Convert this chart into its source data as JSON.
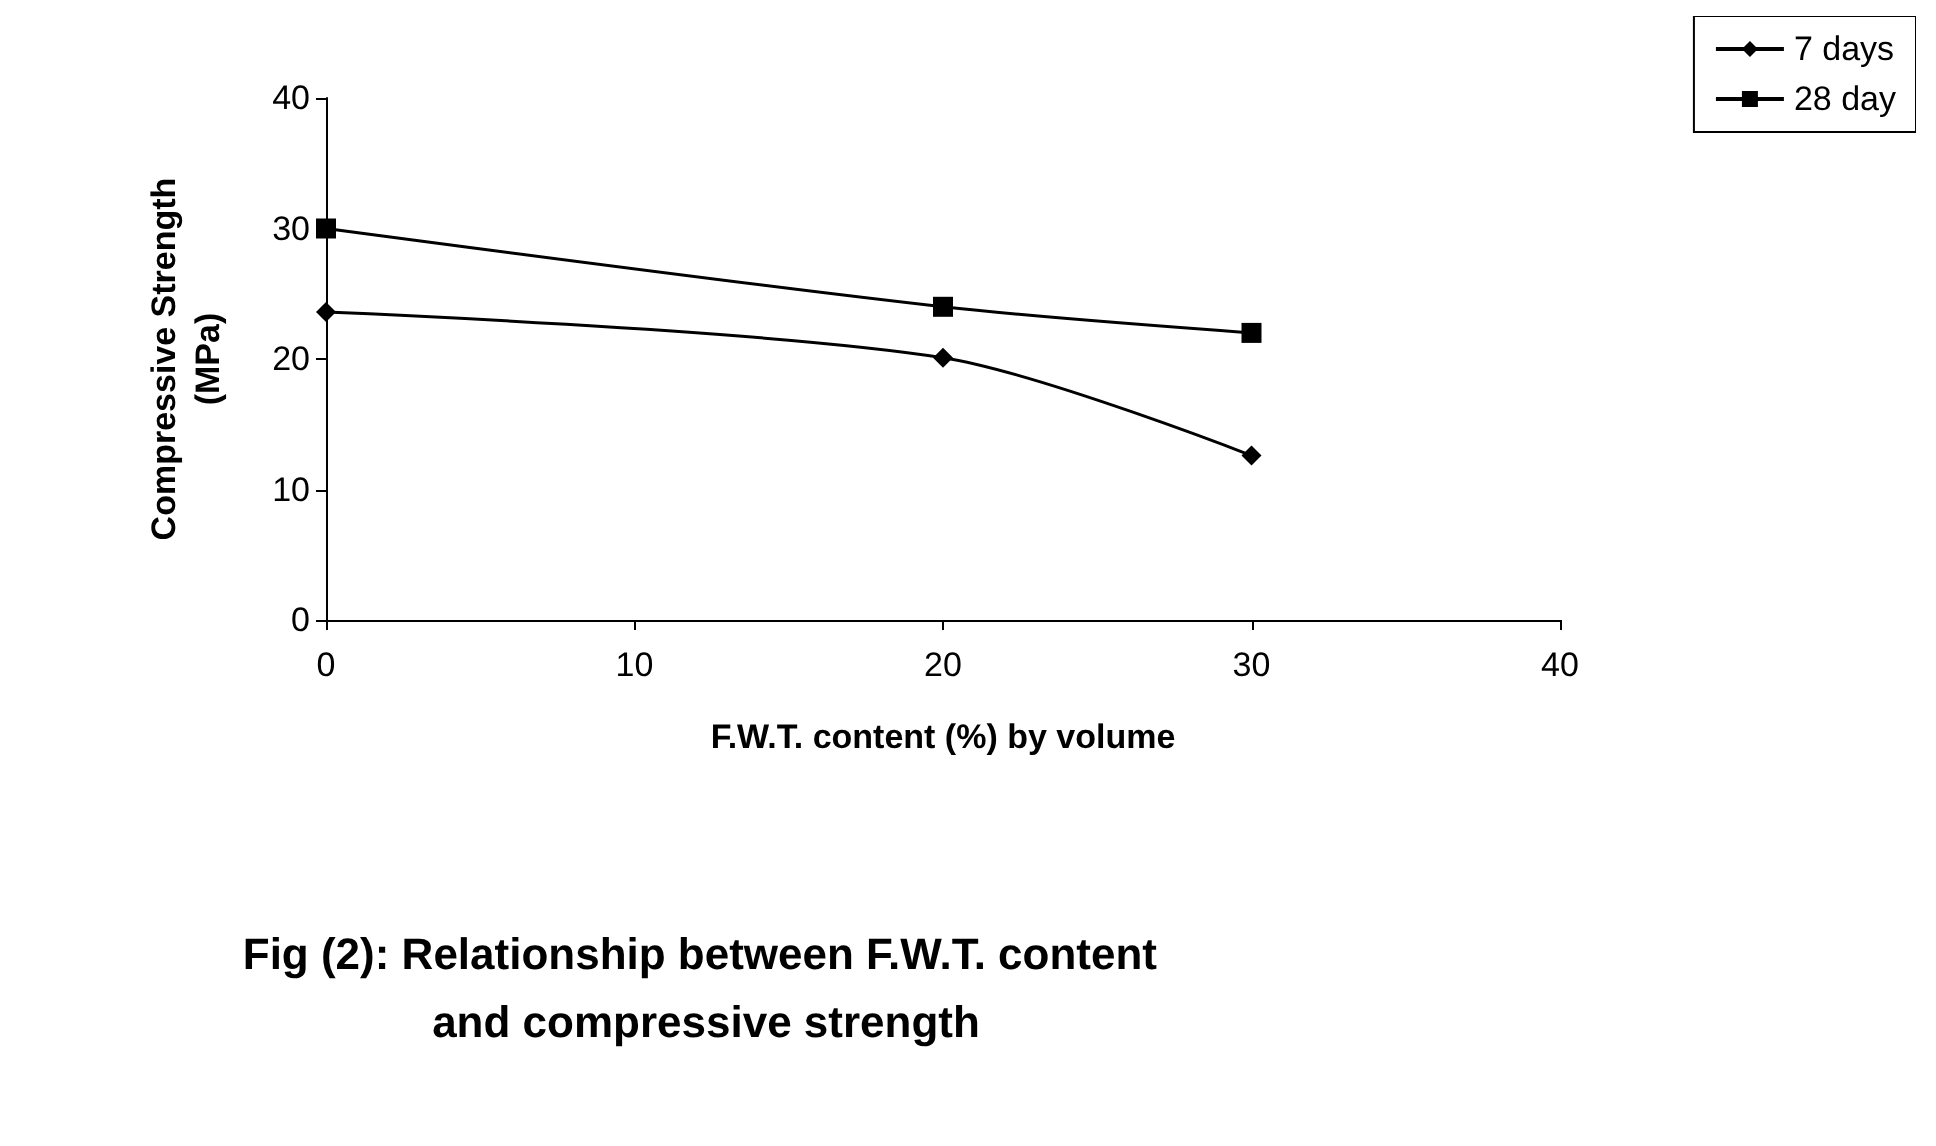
{
  "chart_data": {
    "type": "line",
    "title": "Fig (2): Relationship between F.W.T. content and compressive strength",
    "xlabel": "F.W.T. content (%) by volume",
    "ylabel": "Compressive Strength (MPa)",
    "x": [
      0,
      20,
      30
    ],
    "series": [
      {
        "name": "7 days",
        "color": "#000000",
        "marker": "diamond",
        "values": [
          23.6,
          20.1,
          12.6
        ]
      },
      {
        "name": "28 day",
        "color": "#000000",
        "marker": "square",
        "values": [
          30.0,
          24.0,
          22.0
        ]
      }
    ],
    "xlim": [
      0,
      40
    ],
    "xticks": [
      0,
      10,
      20,
      30,
      40
    ],
    "ylim": [
      0,
      40
    ],
    "yticks": [
      0,
      10,
      20,
      30,
      40
    ],
    "grid": false,
    "legend": "top right",
    "line_style": "solid"
  }
}
